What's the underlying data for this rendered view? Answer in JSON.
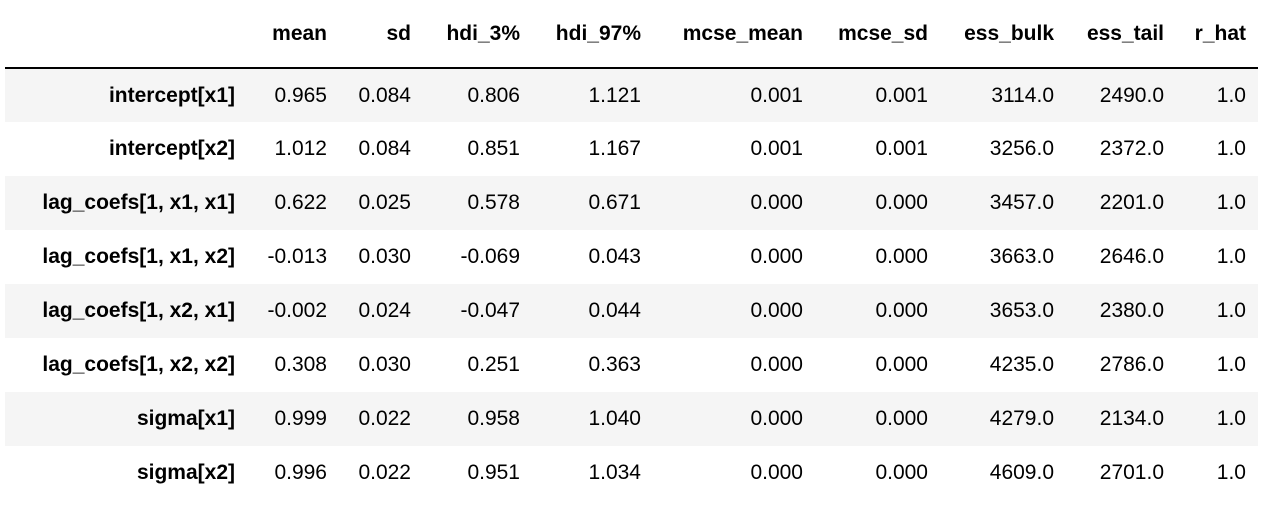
{
  "table": {
    "columns": [
      "mean",
      "sd",
      "hdi_3%",
      "hdi_97%",
      "mcse_mean",
      "mcse_sd",
      "ess_bulk",
      "ess_tail",
      "r_hat"
    ],
    "rows": [
      {
        "label": "intercept[x1]",
        "cells": [
          "0.965",
          "0.084",
          "0.806",
          "1.121",
          "0.001",
          "0.001",
          "3114.0",
          "2490.0",
          "1.0"
        ]
      },
      {
        "label": "intercept[x2]",
        "cells": [
          "1.012",
          "0.084",
          "0.851",
          "1.167",
          "0.001",
          "0.001",
          "3256.0",
          "2372.0",
          "1.0"
        ]
      },
      {
        "label": "lag_coefs[1, x1, x1]",
        "cells": [
          "0.622",
          "0.025",
          "0.578",
          "0.671",
          "0.000",
          "0.000",
          "3457.0",
          "2201.0",
          "1.0"
        ]
      },
      {
        "label": "lag_coefs[1, x1, x2]",
        "cells": [
          "-0.013",
          "0.030",
          "-0.069",
          "0.043",
          "0.000",
          "0.000",
          "3663.0",
          "2646.0",
          "1.0"
        ]
      },
      {
        "label": "lag_coefs[1, x2, x1]",
        "cells": [
          "-0.002",
          "0.024",
          "-0.047",
          "0.044",
          "0.000",
          "0.000",
          "3653.0",
          "2380.0",
          "1.0"
        ]
      },
      {
        "label": "lag_coefs[1, x2, x2]",
        "cells": [
          "0.308",
          "0.030",
          "0.251",
          "0.363",
          "0.000",
          "0.000",
          "4235.0",
          "2786.0",
          "1.0"
        ]
      },
      {
        "label": "sigma[x1]",
        "cells": [
          "0.999",
          "0.022",
          "0.958",
          "1.040",
          "0.000",
          "0.000",
          "4279.0",
          "2134.0",
          "1.0"
        ]
      },
      {
        "label": "sigma[x2]",
        "cells": [
          "0.996",
          "0.022",
          "0.951",
          "1.034",
          "0.000",
          "0.000",
          "4609.0",
          "2701.0",
          "1.0"
        ]
      }
    ]
  }
}
